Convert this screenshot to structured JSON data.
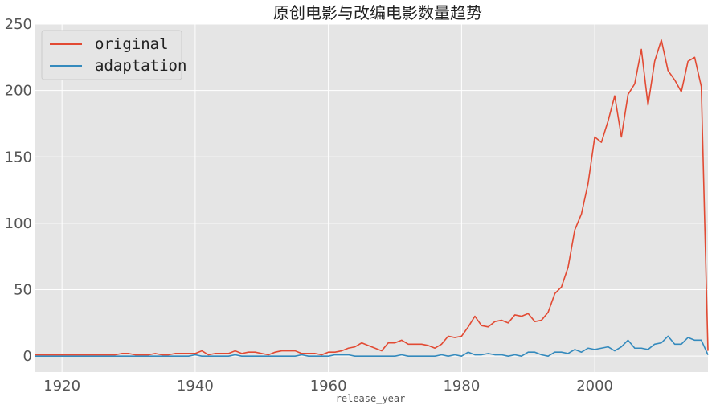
{
  "chart_data": {
    "type": "line",
    "title": "原创电影与改编电影数量趋势",
    "xlabel": "release_year",
    "ylabel": "",
    "xlim": [
      1916,
      2017
    ],
    "ylim": [
      -12,
      250
    ],
    "xticks": [
      1920,
      1940,
      1960,
      1980,
      2000
    ],
    "yticks": [
      0,
      50,
      100,
      150,
      200,
      250
    ],
    "grid": true,
    "legend_position": "top-left",
    "x": [
      1916,
      1917,
      1918,
      1919,
      1920,
      1921,
      1922,
      1923,
      1924,
      1925,
      1926,
      1927,
      1928,
      1929,
      1930,
      1931,
      1932,
      1933,
      1934,
      1935,
      1936,
      1937,
      1938,
      1939,
      1940,
      1941,
      1942,
      1943,
      1944,
      1945,
      1946,
      1947,
      1948,
      1949,
      1950,
      1951,
      1952,
      1953,
      1954,
      1955,
      1956,
      1957,
      1958,
      1959,
      1960,
      1961,
      1962,
      1963,
      1964,
      1965,
      1966,
      1967,
      1968,
      1969,
      1970,
      1971,
      1972,
      1973,
      1974,
      1975,
      1976,
      1977,
      1978,
      1979,
      1980,
      1981,
      1982,
      1983,
      1984,
      1985,
      1986,
      1987,
      1988,
      1989,
      1990,
      1991,
      1992,
      1993,
      1994,
      1995,
      1996,
      1997,
      1998,
      1999,
      2000,
      2001,
      2002,
      2003,
      2004,
      2005,
      2006,
      2007,
      2008,
      2009,
      2010,
      2011,
      2012,
      2013,
      2014,
      2015,
      2016,
      2017
    ],
    "series": [
      {
        "name": "original",
        "color": "#E24A33",
        "values": [
          1,
          1,
          1,
          1,
          1,
          1,
          1,
          1,
          1,
          1,
          1,
          1,
          1,
          2,
          2,
          1,
          1,
          1,
          2,
          1,
          1,
          2,
          2,
          2,
          2,
          4,
          1,
          2,
          2,
          2,
          4,
          2,
          3,
          3,
          2,
          1,
          3,
          4,
          4,
          4,
          2,
          2,
          2,
          1,
          3,
          3,
          4,
          6,
          7,
          10,
          8,
          6,
          4,
          10,
          10,
          12,
          9,
          9,
          9,
          8,
          6,
          9,
          15,
          14,
          15,
          22,
          30,
          23,
          22,
          26,
          27,
          25,
          31,
          30,
          32,
          26,
          27,
          33,
          47,
          52,
          67,
          95,
          107,
          130,
          165,
          161,
          177,
          196,
          165,
          197,
          205,
          231,
          189,
          222,
          238,
          215,
          208,
          199,
          222,
          225,
          203,
          4
        ]
      },
      {
        "name": "adaptation",
        "color": "#348ABD",
        "values": [
          0,
          0,
          0,
          0,
          0,
          0,
          0,
          0,
          0,
          0,
          0,
          0,
          0,
          0,
          0,
          0,
          0,
          0,
          0,
          0,
          0,
          0,
          0,
          0,
          1,
          0,
          0,
          0,
          0,
          0,
          1,
          0,
          0,
          0,
          0,
          0,
          0,
          0,
          0,
          0,
          1,
          0,
          0,
          0,
          0,
          1,
          1,
          1,
          0,
          0,
          0,
          0,
          0,
          0,
          0,
          1,
          0,
          0,
          0,
          0,
          0,
          1,
          0,
          1,
          0,
          3,
          1,
          1,
          2,
          1,
          1,
          0,
          1,
          0,
          3,
          3,
          1,
          0,
          3,
          3,
          2,
          5,
          3,
          6,
          5,
          6,
          7,
          4,
          7,
          12,
          6,
          6,
          5,
          9,
          10,
          15,
          9,
          9,
          14,
          12,
          12,
          1
        ]
      }
    ]
  }
}
